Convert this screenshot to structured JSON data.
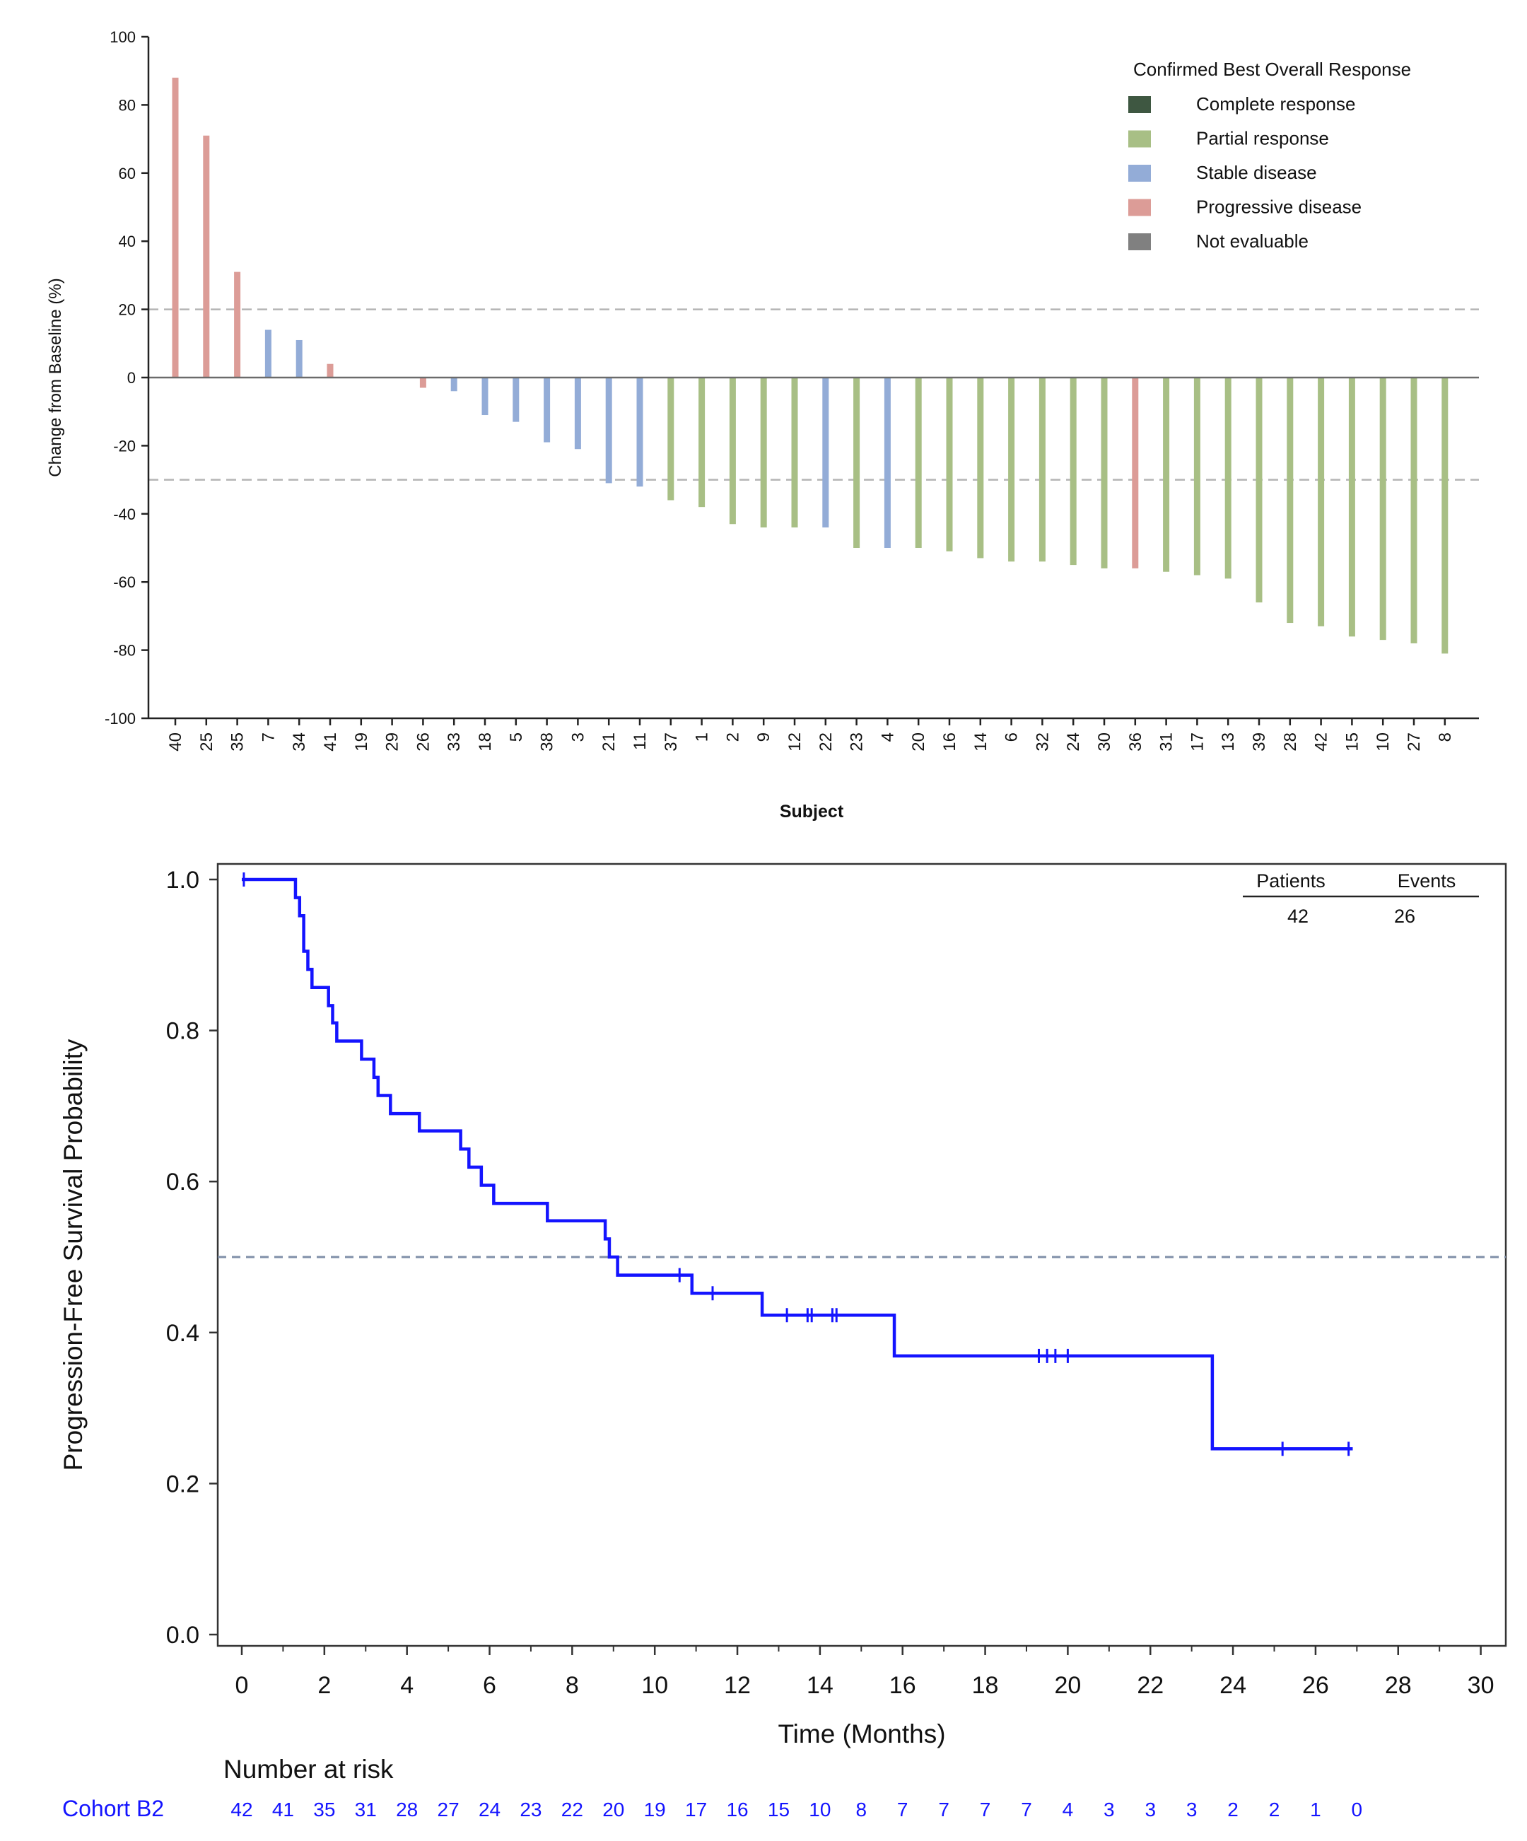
{
  "chart_data": [
    {
      "type": "bar",
      "xlabel": "Subject",
      "ylabel": "Change from Baseline (%)",
      "ylim": [
        -100,
        100
      ],
      "yticks": [
        100,
        80,
        60,
        40,
        20,
        0,
        -20,
        -40,
        -60,
        -80,
        -100
      ],
      "reference_lines": [
        20,
        -30
      ],
      "legend": {
        "title": "Confirmed Best Overall Response",
        "position": "top-right",
        "items": [
          {
            "label": "Complete response",
            "color": "#3e5741"
          },
          {
            "label": "Partial response",
            "color": "#a8bf85"
          },
          {
            "label": "Stable disease",
            "color": "#93acd7"
          },
          {
            "label": "Progressive disease",
            "color": "#dc9c97"
          },
          {
            "label": "Not evaluable",
            "color": "#808080"
          }
        ]
      },
      "categories": [
        "40",
        "25",
        "35",
        "7",
        "34",
        "41",
        "19",
        "29",
        "26",
        "33",
        "18",
        "5",
        "38",
        "3",
        "21",
        "11",
        "37",
        "1",
        "2",
        "9",
        "12",
        "22",
        "23",
        "4",
        "20",
        "16",
        "14",
        "6",
        "32",
        "24",
        "30",
        "36",
        "31",
        "17",
        "13",
        "39",
        "28",
        "42",
        "15",
        "10",
        "27",
        "8"
      ],
      "values": [
        88,
        71,
        31,
        14,
        11,
        4,
        0,
        0,
        -3,
        -4,
        -11,
        -13,
        -19,
        -21,
        -31,
        -32,
        -36,
        -38,
        -43,
        -44,
        -44,
        -44,
        -50,
        -50,
        -50,
        -51,
        -53,
        -54,
        -54,
        -55,
        -56,
        -56,
        -57,
        -58,
        -59,
        -66,
        -72,
        -73,
        -76,
        -77,
        -78,
        -81
      ],
      "responses": [
        "Progressive disease",
        "Progressive disease",
        "Progressive disease",
        "Stable disease",
        "Stable disease",
        "Progressive disease",
        "Stable disease",
        "Stable disease",
        "Progressive disease",
        "Stable disease",
        "Stable disease",
        "Stable disease",
        "Stable disease",
        "Stable disease",
        "Stable disease",
        "Stable disease",
        "Partial response",
        "Partial response",
        "Partial response",
        "Partial response",
        "Partial response",
        "Stable disease",
        "Partial response",
        "Stable disease",
        "Partial response",
        "Partial response",
        "Partial response",
        "Partial response",
        "Partial response",
        "Partial response",
        "Partial response",
        "Progressive disease",
        "Partial response",
        "Partial response",
        "Partial response",
        "Partial response",
        "Partial response",
        "Partial response",
        "Partial response",
        "Partial response",
        "Partial response",
        "Partial response"
      ]
    },
    {
      "type": "line",
      "xlabel": "Time (Months)",
      "ylabel": "Progression-Free Survival Probability",
      "xlim": [
        0,
        30
      ],
      "ylim": [
        0,
        1
      ],
      "xticks": [
        "0",
        "2",
        "4",
        "6",
        "8",
        "10",
        "12",
        "14",
        "16",
        "18",
        "20",
        "22",
        "24",
        "26",
        "28",
        "30"
      ],
      "yticks": [
        "0.0",
        "0.2",
        "0.4",
        "0.6",
        "0.8",
        "1.0"
      ],
      "reference_line": 0.5,
      "series": [
        {
          "color": "#1414ff",
          "steps": [
            [
              0,
              1.0
            ],
            [
              1.3,
              0.976
            ],
            [
              1.4,
              0.952
            ],
            [
              1.5,
              0.905
            ],
            [
              1.6,
              0.881
            ],
            [
              1.7,
              0.857
            ],
            [
              2.1,
              0.833
            ],
            [
              2.2,
              0.81
            ],
            [
              2.3,
              0.786
            ],
            [
              2.9,
              0.762
            ],
            [
              3.2,
              0.738
            ],
            [
              3.3,
              0.714
            ],
            [
              3.6,
              0.69
            ],
            [
              4.3,
              0.667
            ],
            [
              5.3,
              0.643
            ],
            [
              5.5,
              0.619
            ],
            [
              5.8,
              0.595
            ],
            [
              6.1,
              0.571
            ],
            [
              7.4,
              0.548
            ],
            [
              8.8,
              0.524
            ],
            [
              8.9,
              0.5
            ],
            [
              9.1,
              0.476
            ],
            [
              10.9,
              0.452
            ],
            [
              12.6,
              0.423
            ],
            [
              15.8,
              0.369
            ],
            [
              23.5,
              0.246
            ],
            [
              26.9,
              0.246
            ]
          ],
          "censor_times": [
            0.05,
            10.6,
            11.4,
            13.2,
            13.7,
            13.8,
            14.3,
            14.4,
            19.3,
            19.5,
            19.7,
            20.0,
            25.2,
            26.8
          ]
        }
      ],
      "info_table": {
        "headers": [
          "Patients",
          "Events"
        ],
        "values": [
          "42",
          "26"
        ]
      },
      "risk_table": {
        "title": "Number at risk",
        "row_label": "Cohort B2",
        "times": [
          0,
          1,
          2,
          3,
          4,
          5,
          6,
          7,
          8,
          9,
          10,
          11,
          12,
          13,
          14,
          15,
          16,
          17,
          18,
          19,
          20,
          21,
          22,
          23,
          24,
          25,
          26,
          27
        ],
        "counts": [
          "42",
          "41",
          "35",
          "31",
          "28",
          "27",
          "24",
          "23",
          "22",
          "20",
          "19",
          "17",
          "16",
          "15",
          "10",
          "8",
          "7",
          "7",
          "7",
          "7",
          "4",
          "3",
          "3",
          "3",
          "2",
          "2",
          "1",
          "0"
        ]
      }
    }
  ]
}
